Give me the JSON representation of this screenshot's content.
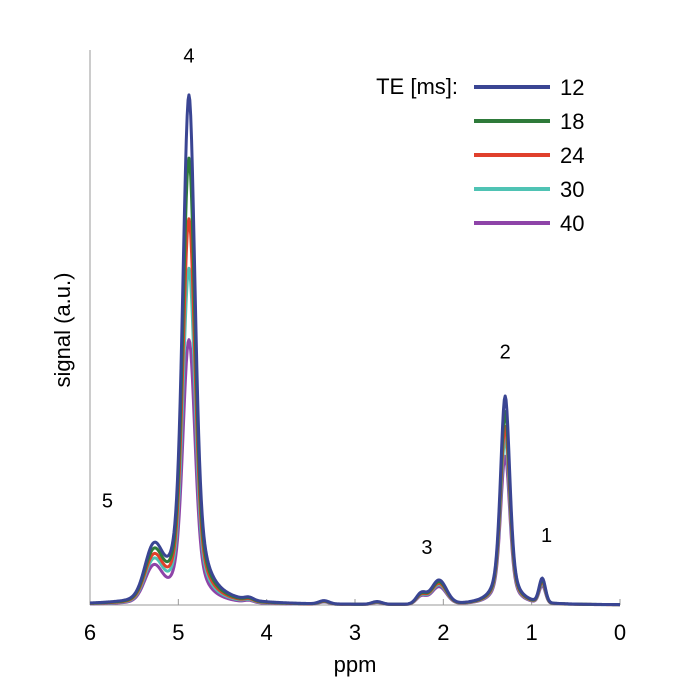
{
  "chart_data": {
    "type": "line",
    "xlabel": "ppm",
    "ylabel": "signal (a.u.)",
    "xlim": [
      6,
      0
    ],
    "x_reversed": true,
    "ylim": [
      0,
      1.05
    ],
    "xticks": [
      "6",
      "5",
      "4",
      "3",
      "2",
      "1",
      "0"
    ],
    "grid": false,
    "legend_title": "TE [ms]:",
    "legend_position": "top-right",
    "series": [
      {
        "name": "12",
        "color": "#3a4593",
        "scale": 1.0
      },
      {
        "name": "18",
        "color": "#2e7a3a",
        "scale": 0.876
      },
      {
        "name": "24",
        "color": "#e0402c",
        "scale": 0.757
      },
      {
        "name": "30",
        "color": "#4fc3b4",
        "scale": 0.66
      },
      {
        "name": "40",
        "color": "#8e44a8",
        "scale": 0.52
      }
    ],
    "peaks": [
      {
        "label": "1",
        "ppm": 0.9,
        "height": 0.085
      },
      {
        "label": "2",
        "ppm": 1.3,
        "height": 0.425
      },
      {
        "label": "3",
        "ppm": 2.05,
        "height": 0.055
      },
      {
        "label": "4",
        "ppm": 4.88,
        "height": 1.0
      },
      {
        "label": "5",
        "ppm": 5.35,
        "height": 0.09
      }
    ]
  }
}
